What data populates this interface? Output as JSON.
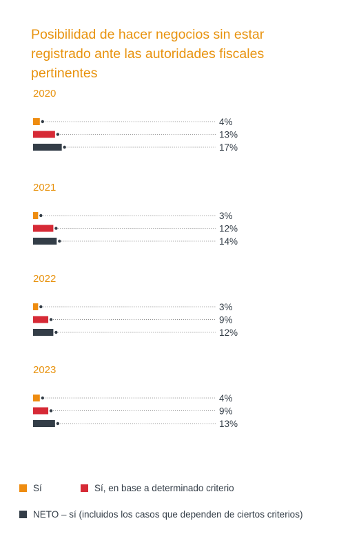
{
  "title": {
    "lines": [
      "Posibilidad de hacer negocios sin estar",
      "registrado ante las autoridades fiscales",
      "pertinentes"
    ]
  },
  "colors": {
    "title": "#e8930f",
    "si": "#ee8c10",
    "si_criterio": "#d62a36",
    "neto": "#333d47",
    "dots": "#888888"
  },
  "legend": [
    {
      "key": "si",
      "label": "Sí",
      "color": "#ee8c10"
    },
    {
      "key": "si_criterio",
      "label": "Sí, en base a determinado criterio",
      "color": "#d62a36"
    },
    {
      "key": "neto",
      "label": "NETO – sí (incluidos los casos que dependen de ciertos criterios)",
      "color": "#333d47"
    }
  ],
  "chart_data": {
    "type": "bar",
    "title": "Posibilidad de hacer negocios sin estar registrado ante las autoridades fiscales pertinentes",
    "unit": "%",
    "categories": [
      "2020",
      "2021",
      "2022",
      "2023"
    ],
    "series": [
      {
        "name": "Sí",
        "color": "#ee8c10",
        "values": [
          4,
          3,
          3,
          4
        ],
        "labels": [
          "4%",
          "3%",
          "3%",
          "4%"
        ]
      },
      {
        "name": "Sí, en base a determinado criterio",
        "color": "#d62a36",
        "values": [
          13,
          12,
          9,
          9
        ],
        "labels": [
          "13%",
          "12%",
          "9%",
          "9%"
        ]
      },
      {
        "name": "NETO – sí (incluidos los casos que dependen de ciertos criterios)",
        "color": "#333d47",
        "values": [
          17,
          14,
          12,
          13
        ],
        "labels": [
          "17%",
          "14%",
          "12%",
          "13%"
        ]
      }
    ],
    "xlim": [
      0,
      100
    ],
    "grid": false,
    "legend_position": "bottom"
  }
}
